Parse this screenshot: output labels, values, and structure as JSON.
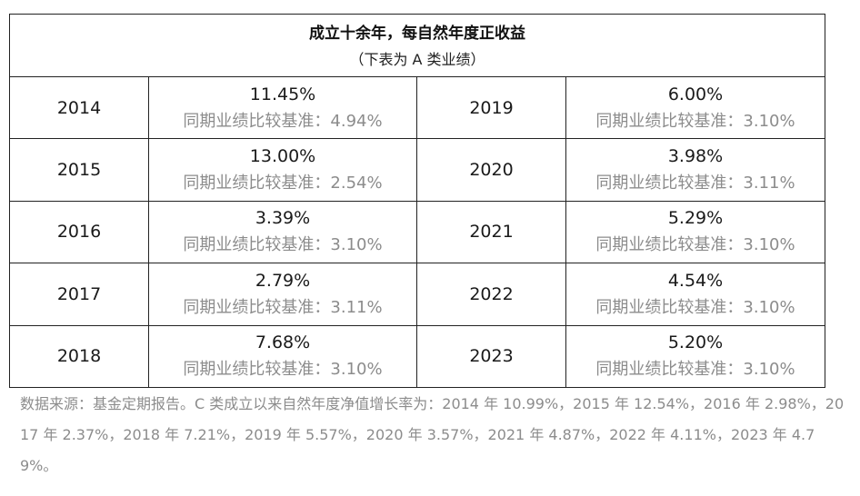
{
  "header": {
    "title": "成立十余年，每自然年度正收益",
    "subtitle": "（下表为 A 类业绩）"
  },
  "rows": [
    {
      "left": {
        "year": "2014",
        "return": "11.45%",
        "benchmark": "同期业绩比较基准：4.94%"
      },
      "right": {
        "year": "2019",
        "return": "6.00%",
        "benchmark": "同期业绩比较基准：3.10%"
      }
    },
    {
      "left": {
        "year": "2015",
        "return": "13.00%",
        "benchmark": "同期业绩比较基准：2.54%"
      },
      "right": {
        "year": "2020",
        "return": "3.98%",
        "benchmark": "同期业绩比较基准：3.11%"
      }
    },
    {
      "left": {
        "year": "2016",
        "return": "3.39%",
        "benchmark": "同期业绩比较基准：3.10%"
      },
      "right": {
        "year": "2021",
        "return": "5.29%",
        "benchmark": "同期业绩比较基准：3.10%"
      }
    },
    {
      "left": {
        "year": "2017",
        "return": "2.79%",
        "benchmark": "同期业绩比较基准：3.11%"
      },
      "right": {
        "year": "2022",
        "return": "4.54%",
        "benchmark": "同期业绩比较基准：3.10%"
      }
    },
    {
      "left": {
        "year": "2018",
        "return": "7.68%",
        "benchmark": "同期业绩比较基准：3.10%"
      },
      "right": {
        "year": "2023",
        "return": "5.20%",
        "benchmark": "同期业绩比较基准：3.10%"
      }
    }
  ],
  "footnote": "数据来源：基金定期报告。C 类成立以来自然年度净值增长率为：2014 年 10.99%，2015 年 12.54%，2016 年 2.98%，2017 年 2.37%，2018 年 7.21%，2019 年 5.57%，2020 年 3.57%，2021 年 4.87%，2022 年 4.11%，2023 年 4.79%。"
}
